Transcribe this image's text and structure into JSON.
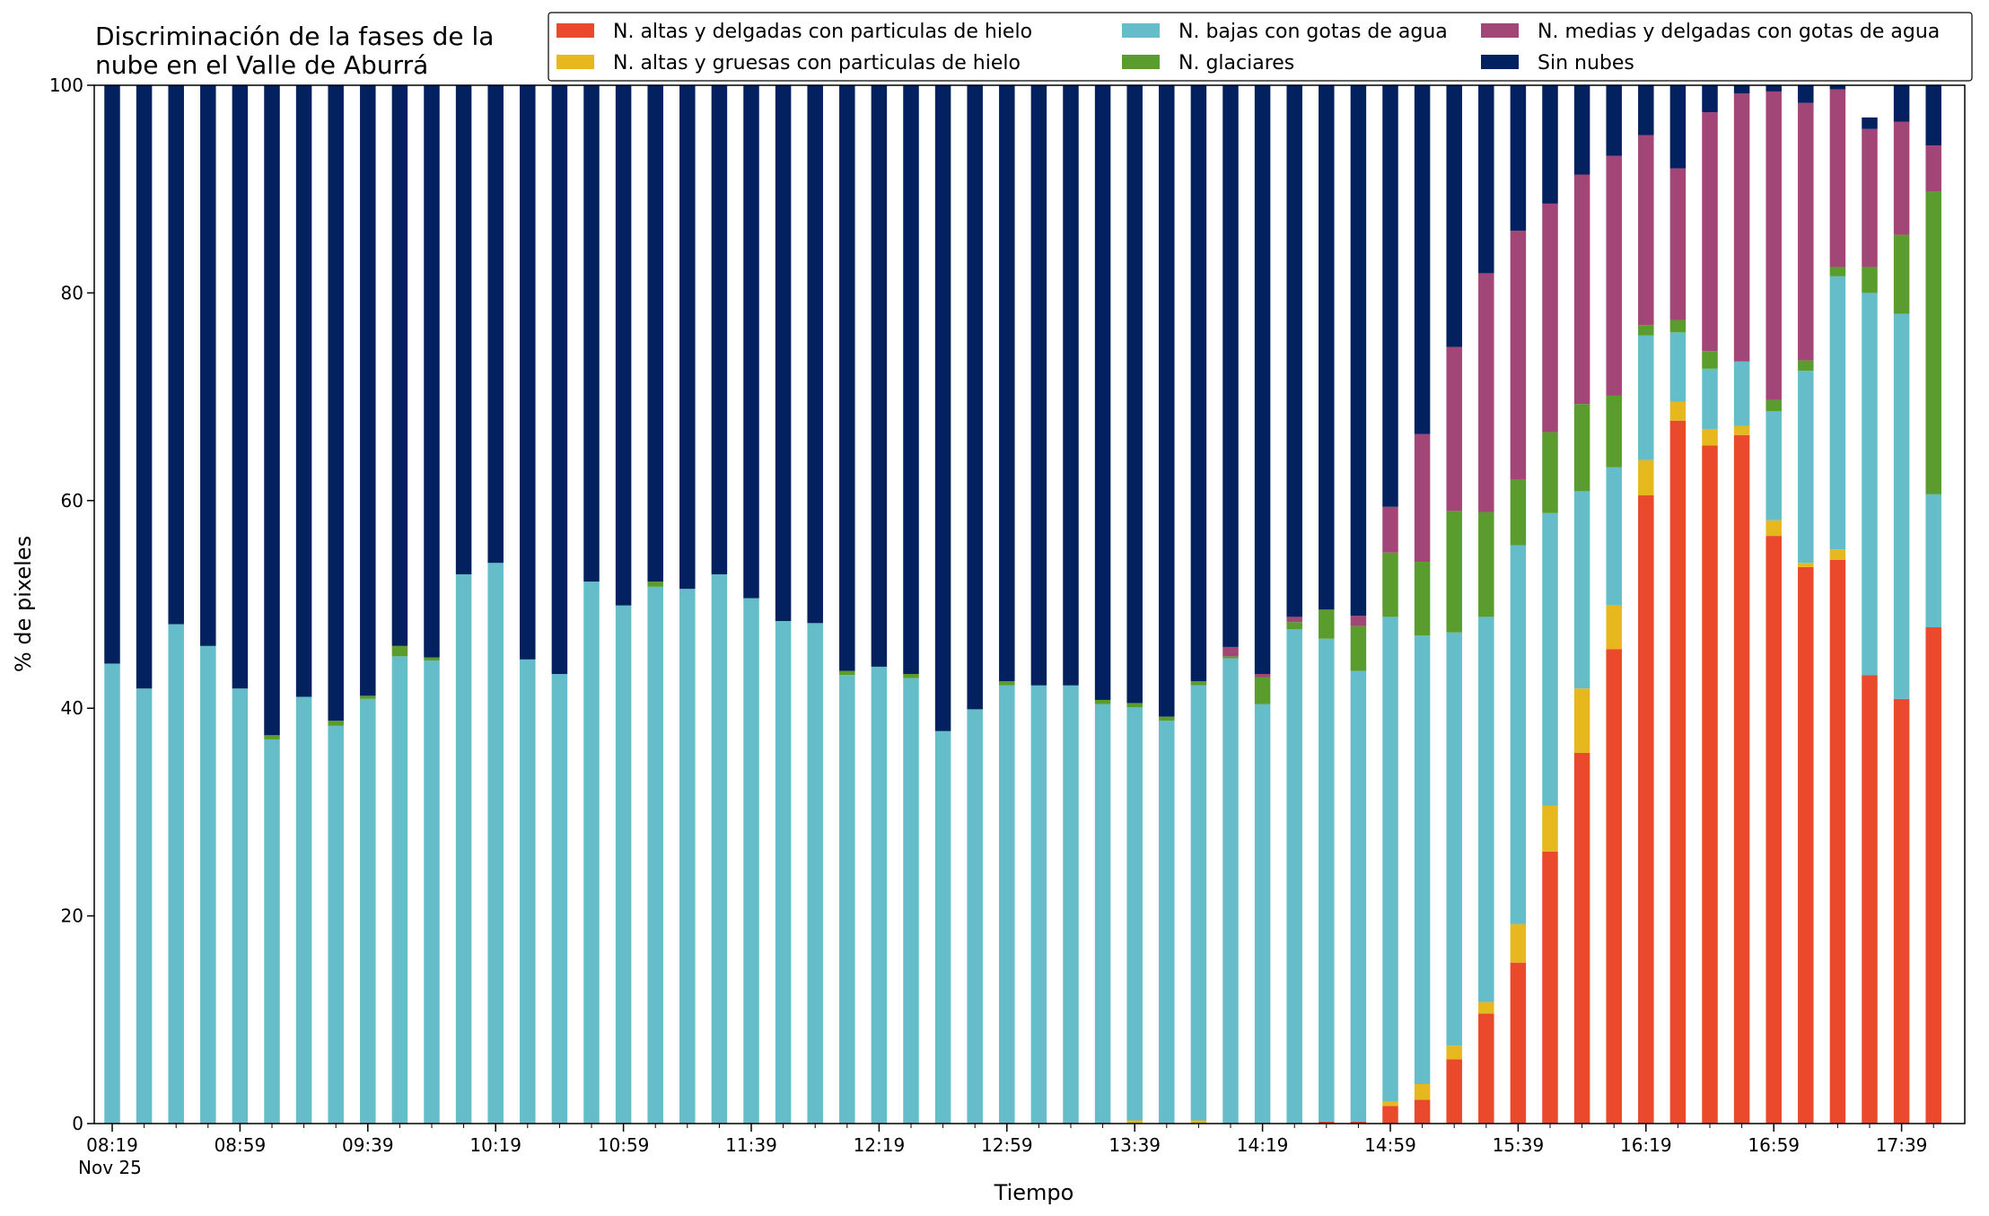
{
  "chart_data": {
    "type": "bar",
    "stacked": true,
    "title_lines": [
      "Discriminación de la fases de la",
      "nube en el Valle de Aburrá"
    ],
    "xlabel": "Tiempo",
    "ylabel": "% de pixeles",
    "ylim": [
      0,
      100
    ],
    "yticks": [
      0,
      20,
      40,
      60,
      80,
      100
    ],
    "xtick_labels": [
      "08:19",
      "08:59",
      "09:39",
      "10:19",
      "10:59",
      "11:39",
      "12:19",
      "12:59",
      "13:39",
      "14:19",
      "14:59",
      "15:39",
      "16:19",
      "16:59",
      "17:39"
    ],
    "xtick_date": "Nov 25",
    "grid": false,
    "legend_position": "top-right",
    "times": [
      "08:19",
      "08:29",
      "08:39",
      "08:49",
      "08:59",
      "09:09",
      "09:19",
      "09:29",
      "09:39",
      "09:49",
      "09:59",
      "10:09",
      "10:19",
      "10:29",
      "10:39",
      "10:49",
      "10:59",
      "11:09",
      "11:19",
      "11:29",
      "11:39",
      "11:49",
      "11:59",
      "12:09",
      "12:19",
      "12:29",
      "12:39",
      "12:49",
      "12:59",
      "13:09",
      "13:19",
      "13:29",
      "13:39",
      "13:49",
      "13:59",
      "14:09",
      "14:19",
      "14:29",
      "14:39",
      "14:49",
      "14:59",
      "15:09",
      "15:19",
      "15:29",
      "15:39",
      "15:49",
      "15:59",
      "16:09",
      "16:19",
      "16:29",
      "16:39",
      "16:49",
      "16:59",
      "17:09",
      "17:19",
      "17:29",
      "17:39",
      "17:49"
    ],
    "series": [
      {
        "name": "N. altas y delgadas con particulas de hielo",
        "color": "#ea4a2b",
        "values": [
          0,
          0,
          0,
          0,
          0,
          0,
          0,
          0,
          0,
          0,
          0,
          0,
          0,
          0,
          0,
          0,
          0,
          0,
          0,
          0,
          0,
          0,
          0,
          0,
          0,
          0,
          0,
          0,
          0,
          0,
          0,
          0,
          0,
          0,
          0,
          0,
          0,
          0,
          0.2,
          0.2,
          1.7,
          2.3,
          6.2,
          10.6,
          15.5,
          26.2,
          35.7,
          45.7,
          60.5,
          67.7,
          65.3,
          66.3,
          56.6,
          53.6,
          54.3,
          43.2,
          40.9,
          47.8
        ]
      },
      {
        "name": "N. altas y gruesas con particulas de hielo",
        "color": "#e6b81e",
        "values": [
          0,
          0,
          0,
          0,
          0,
          0,
          0,
          0,
          0,
          0,
          0,
          0,
          0,
          0,
          0,
          0,
          0,
          0,
          0,
          0,
          0,
          0,
          0,
          0,
          0,
          0,
          0,
          0,
          0,
          0,
          0,
          0,
          0.3,
          0,
          0.3,
          0,
          0,
          0,
          0,
          0,
          0.4,
          1.5,
          1.3,
          1.1,
          3.7,
          4.4,
          6.2,
          4.2,
          3.4,
          1.8,
          1.6,
          0.9,
          1.5,
          0.4,
          1.0,
          0,
          0,
          0
        ]
      },
      {
        "name": "N. bajas con gotas de agua",
        "color": "#64bdc8",
        "values": [
          44.3,
          41.9,
          48.1,
          46.0,
          41.9,
          37.0,
          41.1,
          38.3,
          40.9,
          45.0,
          44.6,
          52.9,
          54.0,
          44.7,
          43.3,
          52.2,
          49.9,
          51.7,
          51.5,
          52.9,
          50.6,
          48.4,
          48.2,
          43.2,
          44.0,
          42.9,
          37.8,
          39.9,
          42.2,
          42.2,
          42.2,
          40.4,
          39.8,
          38.8,
          41.9,
          44.8,
          40.4,
          47.6,
          46.5,
          43.4,
          46.7,
          43.2,
          39.8,
          37.1,
          36.5,
          28.2,
          19.0,
          13.3,
          12.0,
          6.7,
          5.8,
          6.2,
          10.5,
          18.5,
          26.3,
          36.8,
          37.1,
          12.8
        ]
      },
      {
        "name": "N. glaciares",
        "color": "#5b9c2f",
        "values": [
          0,
          0,
          0,
          0,
          0,
          0.4,
          0,
          0.5,
          0.3,
          1.0,
          0.3,
          0,
          0,
          0,
          0,
          0,
          0,
          0.5,
          0,
          0,
          0,
          0,
          0,
          0.4,
          0,
          0.4,
          0,
          0,
          0.4,
          0,
          0,
          0.4,
          0.4,
          0.4,
          0.4,
          0.2,
          2.6,
          0.7,
          2.8,
          4.3,
          6.2,
          7.1,
          11.7,
          10.1,
          6.3,
          7.8,
          8.4,
          6.9,
          1.0,
          1.2,
          1.7,
          0,
          1.1,
          1.0,
          0.9,
          2.5,
          7.6,
          29.2
        ]
      },
      {
        "name": "N. medias y delgadas con gotas de agua",
        "color": "#a24577",
        "values": [
          0,
          0,
          0,
          0,
          0,
          0,
          0,
          0,
          0,
          0,
          0,
          0,
          0,
          0,
          0,
          0,
          0,
          0,
          0,
          0,
          0,
          0,
          0,
          0,
          0,
          0,
          0,
          0,
          0,
          0,
          0,
          0,
          0,
          0,
          0,
          0.9,
          0.3,
          0.5,
          0,
          1.0,
          4.4,
          12.3,
          15.8,
          23.0,
          24.0,
          22.0,
          22.1,
          23.1,
          18.3,
          14.6,
          23.0,
          25.8,
          29.7,
          24.8,
          17.1,
          13.3,
          10.9,
          4.4
        ]
      },
      {
        "name": "Sin nubes",
        "color": "#03205f",
        "values": [
          55.7,
          58.1,
          51.9,
          54.0,
          58.1,
          62.6,
          58.9,
          61.2,
          58.8,
          54.0,
          55.1,
          47.1,
          46.0,
          55.3,
          56.7,
          47.8,
          50.1,
          47.8,
          48.5,
          47.1,
          49.4,
          51.6,
          51.8,
          56.4,
          56.0,
          56.7,
          62.2,
          60.1,
          57.4,
          57.8,
          57.8,
          59.2,
          59.5,
          60.8,
          57.4,
          54.1,
          56.7,
          51.2,
          50.5,
          51.1,
          40.6,
          33.6,
          25.2,
          18.1,
          14.0,
          11.4,
          8.6,
          6.8,
          4.8,
          8.0,
          2.6,
          0.8,
          0.6,
          1.7,
          0.4,
          1.1,
          3.5,
          5.8
        ]
      }
    ]
  }
}
